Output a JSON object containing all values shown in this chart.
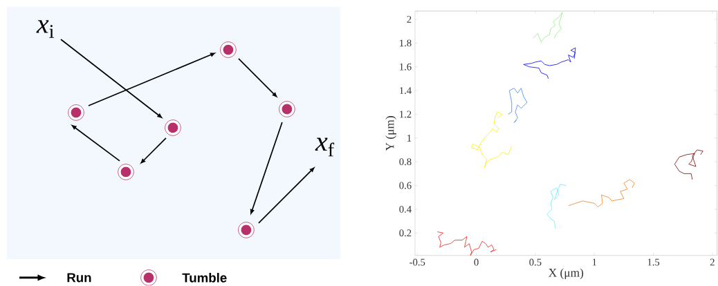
{
  "chart_data": [
    {
      "type": "other",
      "annotations": [
        "*x*$_{i}$",
        "*x*$_{f}$",
        "Run",
        "Tumble"
      ]
    },
    {
      "type": "line",
      "xlabel": "X (μm)",
      "ylabel": "Y (μm)",
      "xlim": [
        -0.52,
        2.04
      ],
      "ylim": [
        0.01,
        2.07
      ],
      "xticks": [
        -0.5,
        0,
        0.5,
        1,
        1.5,
        2
      ],
      "yticks": [
        0.2,
        0.4,
        0.6,
        0.8,
        1,
        1.2,
        1.4,
        1.6,
        1.8,
        2
      ],
      "series": [
        {
          "color": "#e8231c",
          "x": [
            -0.33,
            -0.28,
            -0.32,
            -0.3,
            -0.31,
            -0.27,
            -0.22,
            -0.18,
            -0.12,
            -0.08,
            -0.1,
            -0.06,
            -0.04,
            -0.05,
            -0.02,
            0.02,
            0.05,
            0.08,
            0.1,
            0.13,
            0.15,
            0.12,
            0.17
          ],
          "values": [
            0.21,
            0.2,
            0.17,
            0.12,
            0.08,
            0.1,
            0.11,
            0.14,
            0.14,
            0.17,
            0.08,
            0.11,
            0.04,
            0.01,
            0.06,
            0.07,
            0.13,
            0.11,
            0.08,
            0.1,
            0.06,
            0.04,
            0.06
          ]
        },
        {
          "color": "#ffee00",
          "x": [
            0.3,
            0.27,
            0.22,
            0.18,
            0.12,
            0.08,
            0.07,
            0.09,
            0.05,
            0.03,
            -0.03,
            -0.04,
            0.01,
            0.04,
            0.07,
            0.1,
            0.14,
            0.17,
            0.19,
            0.15,
            0.16,
            0.18,
            0.22,
            0.18
          ],
          "values": [
            0.93,
            0.86,
            0.88,
            0.84,
            0.82,
            0.79,
            0.75,
            0.82,
            0.86,
            0.92,
            0.95,
            0.92,
            0.9,
            0.96,
            1.0,
            1.03,
            1.08,
            1.05,
            1.08,
            1.12,
            1.18,
            1.22,
            1.2,
            1.17
          ]
        },
        {
          "color": "#3d85f0",
          "x": [
            0.27,
            0.3,
            0.3,
            0.28,
            0.32,
            0.35,
            0.38,
            0.4,
            0.43,
            0.38,
            0.35,
            0.33,
            0.35,
            0.32,
            0.34
          ],
          "values": [
            1.2,
            1.22,
            1.3,
            1.4,
            1.42,
            1.38,
            1.42,
            1.35,
            1.3,
            1.25,
            1.28,
            1.22,
            1.17,
            1.13,
            1.15
          ]
        },
        {
          "color": "#0000f0",
          "x": [
            0.61,
            0.6,
            0.55,
            0.53,
            0.45,
            0.4,
            0.47,
            0.5,
            0.55,
            0.58,
            0.62,
            0.68,
            0.72,
            0.78,
            0.8,
            0.78,
            0.82,
            0.84,
            0.8,
            0.84,
            0.83
          ],
          "values": [
            1.5,
            1.53,
            1.55,
            1.59,
            1.6,
            1.62,
            1.63,
            1.64,
            1.65,
            1.62,
            1.61,
            1.62,
            1.64,
            1.66,
            1.64,
            1.7,
            1.68,
            1.72,
            1.74,
            1.76,
            1.67
          ]
        },
        {
          "color": "#90ee80",
          "x": [
            0.48,
            0.52,
            0.55,
            0.58,
            0.62,
            0.63,
            0.67,
            0.65,
            0.7,
            0.73,
            0.7,
            0.72,
            0.68,
            0.66
          ],
          "values": [
            1.84,
            1.88,
            1.81,
            1.85,
            1.87,
            1.92,
            1.95,
            1.98,
            2.02,
            2.06,
            1.96,
            1.92,
            1.88,
            1.84
          ]
        },
        {
          "color": "#5fefff",
          "x": [
            0.67,
            0.66,
            0.62,
            0.6,
            0.64,
            0.63,
            0.65,
            0.63,
            0.68,
            0.7,
            0.66,
            0.71,
            0.76
          ],
          "values": [
            0.24,
            0.3,
            0.33,
            0.36,
            0.4,
            0.45,
            0.5,
            0.55,
            0.58,
            0.52,
            0.48,
            0.61,
            0.6
          ]
        },
        {
          "color": "#f08020",
          "x": [
            0.78,
            0.84,
            0.9,
            0.95,
            1.0,
            1.03,
            1.07,
            1.06,
            1.12,
            1.15,
            1.2,
            1.25,
            1.22,
            1.28,
            1.25,
            1.3,
            1.34,
            1.32
          ],
          "values": [
            0.43,
            0.45,
            0.47,
            0.46,
            0.45,
            0.42,
            0.45,
            0.52,
            0.5,
            0.47,
            0.48,
            0.49,
            0.55,
            0.57,
            0.62,
            0.65,
            0.62,
            0.58
          ]
        },
        {
          "color": "#7a0000",
          "x": [
            1.83,
            1.82,
            1.76,
            1.72,
            1.68,
            1.72,
            1.78,
            1.85,
            1.82,
            1.8,
            1.86,
            1.83,
            1.87,
            1.92,
            1.9
          ],
          "values": [
            0.65,
            0.7,
            0.7,
            0.72,
            0.78,
            0.84,
            0.86,
            0.87,
            0.8,
            0.78,
            0.76,
            0.85,
            0.9,
            0.89,
            0.86
          ]
        }
      ]
    }
  ]
}
